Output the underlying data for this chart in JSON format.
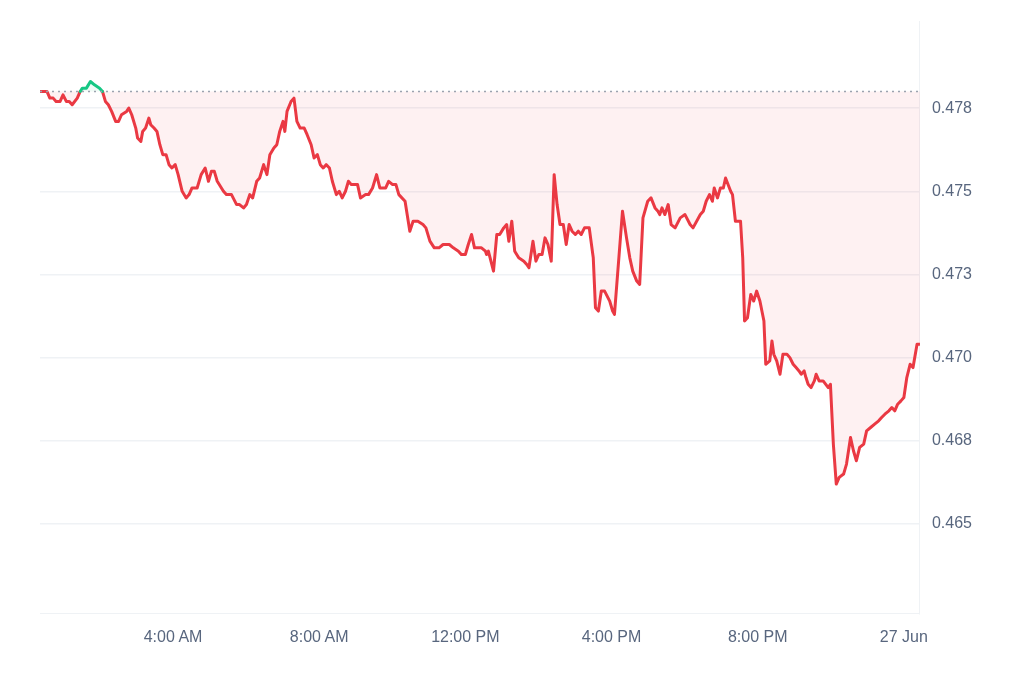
{
  "chart_data": {
    "type": "line",
    "xlim": [
      0.36,
      24.44
    ],
    "ylim": [
      0.4623,
      0.4801
    ],
    "xticks": [
      {
        "value": 4,
        "label": "4:00 AM"
      },
      {
        "value": 8,
        "label": "8:00 AM"
      },
      {
        "value": 12,
        "label": "12:00 PM"
      },
      {
        "value": 16,
        "label": "4:00 PM"
      },
      {
        "value": 20,
        "label": "8:00 PM"
      },
      {
        "value": 24,
        "label": "27 Jun"
      }
    ],
    "yticks": [
      {
        "value": 0.465,
        "label": "0.465"
      },
      {
        "value": 0.4675,
        "label": "0.468"
      },
      {
        "value": 0.47,
        "label": "0.470"
      },
      {
        "value": 0.4725,
        "label": "0.473"
      },
      {
        "value": 0.475,
        "label": "0.475"
      },
      {
        "value": 0.4775,
        "label": "0.478"
      }
    ],
    "grid": "y",
    "legend": false,
    "marker": "none",
    "line_style": "solid",
    "ref_lines": [
      {
        "axis": "y",
        "value": 0.478,
        "color": "#9ca3af",
        "line_style": "dotted"
      }
    ],
    "series": [
      {
        "color": "#16c784",
        "x": [
          1.46,
          1.52,
          1.63,
          1.74,
          1.85,
          1.99,
          2.07
        ],
        "values": [
          0.478,
          0.4781,
          0.4781,
          0.4783,
          0.4782,
          0.4781,
          0.478
        ]
      },
      {
        "color": "#ea3943",
        "x": [
          0.36,
          0.47,
          0.55,
          0.63,
          0.72,
          0.8,
          0.91,
          0.99,
          1.08,
          1.16,
          1.24,
          1.38,
          1.46,
          1.75,
          2.07,
          2.15,
          2.23,
          2.32,
          2.43,
          2.51,
          2.59,
          2.73,
          2.79,
          2.87,
          2.98,
          3.03,
          3.12,
          3.17,
          3.25,
          3.34,
          3.39,
          3.48,
          3.56,
          3.64,
          3.72,
          3.81,
          3.89,
          3.97,
          4.06,
          4.14,
          4.25,
          4.36,
          4.44,
          4.52,
          4.58,
          4.66,
          4.77,
          4.88,
          4.97,
          5.05,
          5.13,
          5.21,
          5.38,
          5.46,
          5.6,
          5.74,
          5.82,
          5.93,
          6.01,
          6.1,
          6.18,
          6.29,
          6.37,
          6.48,
          6.57,
          6.65,
          6.76,
          6.84,
          6.92,
          7.01,
          7.06,
          7.12,
          7.23,
          7.31,
          7.39,
          7.48,
          7.59,
          7.67,
          7.78,
          7.86,
          7.95,
          8.03,
          8.11,
          8.19,
          8.28,
          8.36,
          8.47,
          8.55,
          8.63,
          8.72,
          8.8,
          8.88,
          9.05,
          9.13,
          9.27,
          9.35,
          9.46,
          9.57,
          9.66,
          9.82,
          9.9,
          10.01,
          10.1,
          10.18,
          10.35,
          10.48,
          10.57,
          10.7,
          10.84,
          10.92,
          11.03,
          11.15,
          11.28,
          11.39,
          11.56,
          11.67,
          11.81,
          11.89,
          12.0,
          12.08,
          12.17,
          12.25,
          12.33,
          12.44,
          12.55,
          12.58,
          12.63,
          12.77,
          12.86,
          12.94,
          13.05,
          13.13,
          13.19,
          13.27,
          13.35,
          13.46,
          13.6,
          13.68,
          13.74,
          13.85,
          13.93,
          14.01,
          14.1,
          14.18,
          14.26,
          14.35,
          14.43,
          14.51,
          14.59,
          14.68,
          14.76,
          14.84,
          14.92,
          15.01,
          15.09,
          15.17,
          15.26,
          15.34,
          15.39,
          15.5,
          15.56,
          15.64,
          15.72,
          15.81,
          15.95,
          16.03,
          16.08,
          16.3,
          16.41,
          16.5,
          16.58,
          16.69,
          16.77,
          16.86,
          16.99,
          17.08,
          17.19,
          17.27,
          17.32,
          17.38,
          17.46,
          17.55,
          17.63,
          17.74,
          17.88,
          18.01,
          18.15,
          18.23,
          18.43,
          18.51,
          18.59,
          18.68,
          18.76,
          18.81,
          18.9,
          18.98,
          19.06,
          19.12,
          19.26,
          19.31,
          19.39,
          19.53,
          19.59,
          19.64,
          19.72,
          19.81,
          19.89,
          19.97,
          20.06,
          20.17,
          20.22,
          20.33,
          20.39,
          20.44,
          20.52,
          20.61,
          20.69,
          20.8,
          20.88,
          20.97,
          21.05,
          21.13,
          21.19,
          21.27,
          21.32,
          21.38,
          21.46,
          21.55,
          21.6,
          21.68,
          21.79,
          21.93,
          21.99,
          22.07,
          22.15,
          22.23,
          22.35,
          22.43,
          22.54,
          22.62,
          22.7,
          22.79,
          22.9,
          22.98,
          23.09,
          23.2,
          23.31,
          23.39,
          23.48,
          23.59,
          23.67,
          23.75,
          23.83,
          23.92,
          24.0,
          24.08,
          24.17,
          24.25,
          24.36,
          24.44
        ],
        "values": [
          0.478,
          0.478,
          0.478,
          0.4778,
          0.4778,
          0.4777,
          0.4777,
          0.4779,
          0.4777,
          0.4777,
          0.4776,
          0.4778,
          0.478,
          null,
          0.478,
          0.4777,
          0.4776,
          0.4774,
          0.4771,
          0.4771,
          0.4773,
          0.4774,
          0.4775,
          0.4773,
          0.4769,
          0.4766,
          0.4765,
          0.4768,
          0.4769,
          0.4772,
          0.477,
          0.4769,
          0.4768,
          0.4764,
          0.4761,
          0.4761,
          0.4758,
          0.4757,
          0.4758,
          0.4755,
          0.475,
          0.4748,
          0.4749,
          0.4751,
          0.4751,
          0.4751,
          0.4755,
          0.4757,
          0.4753,
          0.4756,
          0.4756,
          0.4753,
          0.475,
          0.4749,
          0.4749,
          0.4746,
          0.4746,
          0.4745,
          0.4746,
          0.4749,
          0.4748,
          0.4753,
          0.4754,
          0.4758,
          0.4755,
          0.4761,
          0.4763,
          0.4764,
          0.4768,
          0.4771,
          0.4768,
          0.4774,
          0.4777,
          0.4778,
          0.4771,
          0.4769,
          0.4769,
          0.4767,
          0.4764,
          0.476,
          0.4761,
          0.4758,
          0.4757,
          0.4758,
          0.4757,
          0.4753,
          0.4749,
          0.475,
          0.4748,
          0.475,
          0.4753,
          0.4752,
          0.4752,
          0.4748,
          0.4749,
          0.4749,
          0.4751,
          0.4755,
          0.4751,
          0.4751,
          0.4753,
          0.4752,
          0.4752,
          0.4749,
          0.4747,
          0.4738,
          0.4741,
          0.4741,
          0.474,
          0.4739,
          0.4735,
          0.4733,
          0.4733,
          0.4734,
          0.4734,
          0.4733,
          0.4732,
          0.4731,
          0.4731,
          0.4734,
          0.4737,
          0.4733,
          0.4733,
          0.4733,
          0.4732,
          0.4731,
          0.4732,
          0.4726,
          0.4737,
          0.4737,
          0.4739,
          0.474,
          0.4735,
          0.4741,
          0.4732,
          0.473,
          0.4729,
          0.4728,
          0.4727,
          0.4735,
          0.4729,
          0.4731,
          0.4731,
          0.4736,
          0.4734,
          0.4729,
          0.4755,
          0.4746,
          0.474,
          0.474,
          0.4734,
          0.474,
          0.4738,
          0.4737,
          0.4738,
          0.4737,
          0.4739,
          0.4739,
          0.4739,
          0.473,
          0.4715,
          0.4714,
          0.472,
          0.472,
          0.4717,
          0.4714,
          0.4713,
          0.4744,
          0.4736,
          0.473,
          0.4726,
          0.4723,
          0.4722,
          0.4742,
          0.4747,
          0.4748,
          0.4745,
          0.4744,
          0.4743,
          0.4745,
          0.4743,
          0.4746,
          0.474,
          0.4739,
          0.4742,
          0.4743,
          0.474,
          0.4739,
          0.4743,
          0.4744,
          0.4747,
          0.4749,
          0.4747,
          0.4751,
          0.4748,
          0.4751,
          0.4751,
          0.4754,
          0.475,
          0.4749,
          0.4741,
          0.4741,
          0.473,
          0.4711,
          0.4712,
          0.4719,
          0.4717,
          0.472,
          0.4717,
          0.4711,
          0.4698,
          0.4699,
          0.4705,
          0.4701,
          0.4699,
          0.4695,
          0.4701,
          0.4701,
          0.47,
          0.4698,
          0.4697,
          0.4696,
          0.4695,
          0.4696,
          0.4694,
          0.4692,
          0.4691,
          0.4693,
          0.4695,
          0.4693,
          0.4693,
          0.4691,
          0.4692,
          0.4674,
          0.4662,
          0.4664,
          0.4665,
          0.4668,
          0.4676,
          0.4672,
          0.4669,
          0.4673,
          0.4674,
          0.4678,
          0.4679,
          0.468,
          0.4681,
          0.4682,
          0.4683,
          0.4684,
          0.4685,
          0.4684,
          0.4686,
          0.4687,
          0.4688,
          0.4694,
          0.4698,
          0.4697,
          0.4704,
          0.4704
        ]
      }
    ]
  }
}
